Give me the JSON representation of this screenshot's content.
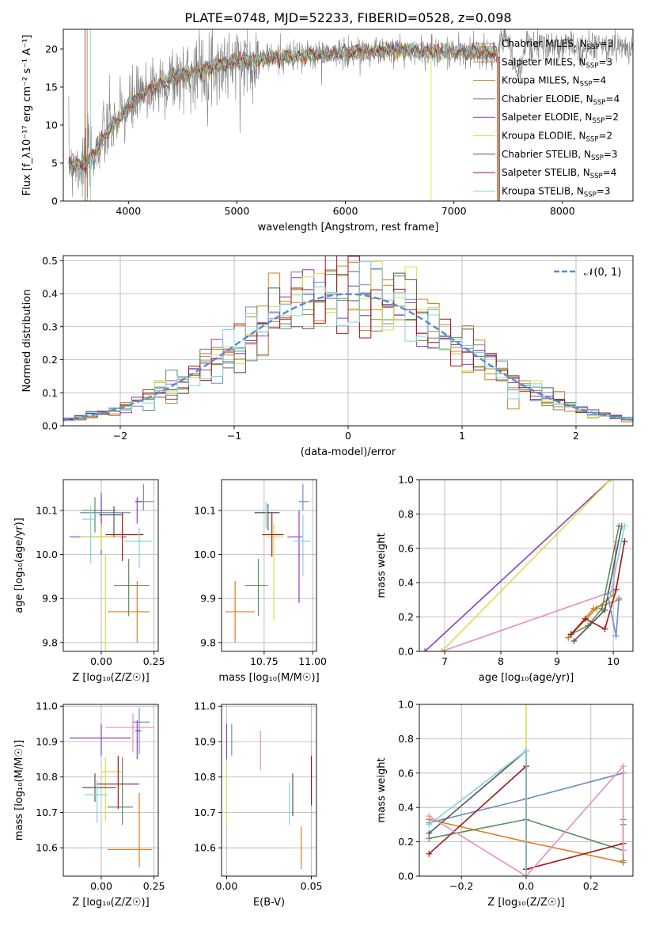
{
  "title": "PLATE=0748, MJD=52233, FIBERID=0528, z=0.098",
  "series_colors": [
    "#6c8ebf",
    "#e07b1f",
    "#b5892a",
    "#5a8f5a",
    "#8e3fb5",
    "#d8e04a",
    "#555555",
    "#a01818",
    "#7fd3dc"
  ],
  "chart_data": [
    {
      "panel": "spectrum",
      "type": "line",
      "xlabel": "wavelength [Angstrom, rest frame]",
      "ylabel": "Flux [f_λ10⁻¹⁷ erg cm⁻² s⁻¹ A⁻¹]",
      "xlim": [
        3400,
        8650
      ],
      "ylim": [
        0,
        22.6
      ],
      "xticks": [
        4000,
        5000,
        6000,
        7000,
        8000
      ],
      "yticks": [
        0,
        5,
        10,
        15,
        20
      ],
      "grid": false,
      "legend_position": "top-right",
      "legend": [
        "Chabrier MILES, N_SSP=3",
        "Salpeter MILES, N_SSP=3",
        "Kroupa MILES, N_SSP=4",
        "Chabrier ELODIE, N_SSP=4",
        "Salpeter ELODIE, N_SSP=2",
        "Kroupa ELODIE, N_SSP=2",
        "Chabrier STELIB, N_SSP=3",
        "Salpeter STELIB, N_SSP=4",
        "Kroupa STELIB, N_SSP=3"
      ],
      "continuum": {
        "x": [
          3450,
          3600,
          3800,
          3950,
          4050,
          4200,
          4400,
          4600,
          4800,
          5000,
          5200,
          5400,
          5600,
          5800,
          6000,
          6200,
          6400,
          6600,
          6800,
          7000,
          7200,
          7400
        ],
        "y": [
          5.2,
          4.5,
          9.0,
          11.5,
          13.0,
          14.8,
          16.0,
          17.0,
          17.8,
          18.3,
          18.6,
          18.9,
          19.1,
          19.3,
          19.5,
          19.7,
          19.8,
          19.8,
          19.7,
          19.6,
          19.6,
          19.5
        ]
      },
      "data_extends_to": 8650,
      "vertical_spikes": [
        3600,
        3620,
        3650,
        6790,
        7400,
        7410,
        7420
      ]
    },
    {
      "panel": "residual-histogram",
      "type": "bar",
      "xlabel": "(data-model)/error",
      "ylabel": "Normed distribution",
      "xlim": [
        -2.5,
        2.5
      ],
      "ylim": [
        0,
        0.515
      ],
      "xticks": [
        -2,
        -1,
        0,
        1,
        2
      ],
      "yticks": [
        0.0,
        0.1,
        0.2,
        0.3,
        0.4,
        0.5
      ],
      "grid": true,
      "legend_position": "top-right",
      "legend": [
        "𝒩(0, 1)"
      ],
      "bin_width": 0.1
    },
    {
      "panel": "age-vs-Z",
      "type": "scatter",
      "xlabel": "Z [log₁₀(Z/Z☉)]",
      "ylabel": "age  [log₁₀(age/yr)]",
      "xlim": [
        -0.18,
        0.27
      ],
      "ylim": [
        9.78,
        10.17
      ],
      "xticks": [
        0.0,
        0.25
      ],
      "yticks": [
        9.8,
        9.9,
        10.0,
        10.1
      ],
      "grid": true,
      "points": [
        {
          "x": 0.0,
          "y": 10.095,
          "xerr": [
            0.1,
            0.14
          ],
          "yerr": [
            0.04,
            0.03
          ],
          "c": 0
        },
        {
          "x": 0.17,
          "y": 9.87,
          "xerr": [
            0.14,
            0.06
          ],
          "yerr": [
            0.07,
            0.07
          ],
          "c": 1
        },
        {
          "x": -0.03,
          "y": 10.1,
          "xerr": [
            0.06,
            0.1
          ],
          "yerr": [
            0.05,
            0.03
          ],
          "c": 3
        },
        {
          "x": 0.13,
          "y": 9.93,
          "xerr": [
            0.07,
            0.1
          ],
          "yerr": [
            0.07,
            0.06
          ],
          "c": 3
        },
        {
          "x": 0.0,
          "y": 10.04,
          "xerr": [
            0.15,
            0.12
          ],
          "yerr": [
            0.04,
            0.1
          ],
          "c": 4
        },
        {
          "x": 0.0,
          "y": 10.04,
          "xerr": [
            0.1,
            0.1
          ],
          "yerr": [
            0.03,
            0.03
          ],
          "c": 5
        },
        {
          "x": 0.02,
          "y": 10.0,
          "xerr": [
            0.0,
            0.0
          ],
          "yerr": [
            0.22,
            0.0
          ],
          "c": 5
        },
        {
          "x": 0.06,
          "y": 10.09,
          "xerr": [
            0.07,
            0.04
          ],
          "yerr": [
            0.05,
            0.02
          ],
          "c": 6
        },
        {
          "x": 0.1,
          "y": 10.045,
          "xerr": [
            0.08,
            0.1
          ],
          "yerr": [
            0.06,
            0.05
          ],
          "c": 7
        },
        {
          "x": 0.18,
          "y": 10.03,
          "xerr": [
            0.07,
            0.06
          ],
          "yerr": [
            0.06,
            0.03
          ],
          "c": 8
        },
        {
          "x": 0.2,
          "y": 10.12,
          "xerr": [
            0.03,
            0.05
          ],
          "yerr": [
            0.02,
            0.04
          ],
          "c": 0
        },
        {
          "x": -0.05,
          "y": 10.08,
          "xerr": [
            0.04,
            0.02
          ],
          "yerr": [
            0.1,
            0.03
          ],
          "c": 8
        },
        {
          "x": 0.17,
          "y": 10.12,
          "xerr": [
            0.01,
            0.02
          ],
          "yerr": [
            0.05,
            0.01
          ],
          "c": 4
        }
      ]
    },
    {
      "panel": "age-vs-mass",
      "type": "scatter",
      "xlabel": "mass [log₁₀(M/M☉)]",
      "ylabel": "",
      "xlim": [
        10.53,
        11.02
      ],
      "ylim": [
        9.78,
        10.17
      ],
      "xticks": [
        10.75,
        11.0
      ],
      "yticks": [
        9.8,
        9.9,
        10.0,
        10.1
      ],
      "grid": true,
      "points": [
        {
          "x": 10.6,
          "y": 9.87,
          "xerr": [
            0.05,
            0.1
          ],
          "yerr": [
            0.07,
            0.07
          ],
          "c": 1
        },
        {
          "x": 10.72,
          "y": 9.93,
          "xerr": [
            0.07,
            0.05
          ],
          "yerr": [
            0.07,
            0.06
          ],
          "c": 3
        },
        {
          "x": 10.77,
          "y": 10.095,
          "xerr": [
            0.07,
            0.06
          ],
          "yerr": [
            0.04,
            0.02
          ],
          "c": 6
        },
        {
          "x": 10.8,
          "y": 10.04,
          "xerr": [
            0.04,
            0.05
          ],
          "yerr": [
            0.19,
            0.03
          ],
          "c": 5
        },
        {
          "x": 10.79,
          "y": 10.045,
          "xerr": [
            0.05,
            0.06
          ],
          "yerr": [
            0.05,
            0.05
          ],
          "c": 7
        },
        {
          "x": 10.93,
          "y": 10.04,
          "xerr": [
            0.06,
            0.02
          ],
          "yerr": [
            0.15,
            0.06
          ],
          "c": 4
        },
        {
          "x": 10.95,
          "y": 10.03,
          "xerr": [
            0.05,
            0.04
          ],
          "yerr": [
            0.08,
            0.06
          ],
          "c": 8
        },
        {
          "x": 10.95,
          "y": 10.12,
          "xerr": [
            0.02,
            0.03
          ],
          "yerr": [
            0.02,
            0.04
          ],
          "c": 0
        },
        {
          "x": 10.76,
          "y": 10.1,
          "xerr": [
            0.05,
            0.04
          ],
          "yerr": [
            0.04,
            0.02
          ],
          "c": 8
        }
      ]
    },
    {
      "panel": "weight-vs-age",
      "type": "line",
      "xlabel": "age  [log₁₀(age/yr)]",
      "ylabel": "mass weight",
      "xlim": [
        6.55,
        10.35
      ],
      "ylim": [
        0.0,
        1.0
      ],
      "xticks": [
        7,
        8,
        9,
        10
      ],
      "yticks": [
        0.0,
        0.2,
        0.4,
        0.6,
        0.8,
        1.0
      ],
      "grid": true,
      "series": [
        {
          "c": 4,
          "x": [
            6.65,
            9.95
          ],
          "y": [
            0.0,
            1.0
          ]
        },
        {
          "c": 5,
          "x": [
            6.95,
            9.95
          ],
          "y": [
            0.0,
            1.0
          ]
        },
        {
          "c": "#e58fbf",
          "x": [
            6.95,
            10.0,
            10.05
          ],
          "y": [
            0.0,
            0.35,
            0.64
          ]
        },
        {
          "c": 1,
          "x": [
            9.2,
            9.65,
            10.1
          ],
          "y": [
            0.08,
            0.25,
            0.3
          ]
        },
        {
          "c": 2,
          "x": [
            9.2,
            9.7,
            10.0
          ],
          "y": [
            0.08,
            0.25,
            0.33
          ]
        },
        {
          "c": 3,
          "x": [
            9.25,
            9.55,
            9.8,
            10.1
          ],
          "y": [
            0.1,
            0.15,
            0.25,
            0.73
          ]
        },
        {
          "c": 6,
          "x": [
            9.3,
            9.85,
            10.15
          ],
          "y": [
            0.06,
            0.24,
            0.73
          ]
        },
        {
          "c": 7,
          "x": [
            9.25,
            9.5,
            9.85,
            10.05,
            10.2
          ],
          "y": [
            0.1,
            0.19,
            0.13,
            0.36,
            0.64
          ]
        },
        {
          "c": 0,
          "x": [
            9.9,
            10.05,
            10.1
          ],
          "y": [
            0.33,
            0.09,
            0.31
          ]
        },
        {
          "c": 8,
          "x": [
            9.95,
            10.2
          ],
          "y": [
            0.33,
            0.73
          ]
        }
      ]
    },
    {
      "panel": "mass-vs-Z",
      "type": "scatter",
      "xlabel": "Z [log₁₀(Z/Z☉)]",
      "ylabel": "mass [log₁₀(M/M☉)]",
      "xlim": [
        -0.18,
        0.27
      ],
      "ylim": [
        10.52,
        11.005
      ],
      "xticks": [
        0.0,
        0.25
      ],
      "yticks": [
        10.6,
        10.7,
        10.8,
        10.9,
        11.0
      ],
      "grid": true,
      "points": [
        {
          "x": 0.0,
          "y": 10.91,
          "xerr": [
            0.15,
            0.14
          ],
          "yerr": [
            0.05,
            0.04
          ],
          "c": 4
        },
        {
          "x": 0.18,
          "y": 10.595,
          "xerr": [
            0.15,
            0.06
          ],
          "yerr": [
            0.05,
            0.16
          ],
          "c": 1
        },
        {
          "x": 0.18,
          "y": 10.955,
          "xerr": [
            0.03,
            0.05
          ],
          "yerr": [
            0.09,
            0.04
          ],
          "c": 0
        },
        {
          "x": 0.15,
          "y": 10.94,
          "xerr": [
            0.13,
            0.1
          ],
          "yerr": [
            0.07,
            0.04
          ],
          "c": "#e58fbf"
        },
        {
          "x": 0.02,
          "y": 10.815,
          "xerr": [
            0.02,
            0.08
          ],
          "yerr": [
            0.14,
            0.04
          ],
          "c": 5
        },
        {
          "x": -0.03,
          "y": 10.77,
          "xerr": [
            0.06,
            0.1
          ],
          "yerr": [
            0.04,
            0.04
          ],
          "c": 6
        },
        {
          "x": -0.02,
          "y": 10.75,
          "xerr": [
            0.06,
            0.05
          ],
          "yerr": [
            0.08,
            0.04
          ],
          "c": 8
        },
        {
          "x": 0.1,
          "y": 10.715,
          "xerr": [
            0.07,
            0.05
          ],
          "yerr": [
            0.05,
            0.14
          ],
          "c": 3
        },
        {
          "x": 0.08,
          "y": 10.78,
          "xerr": [
            0.1,
            0.1
          ],
          "yerr": [
            0.07,
            0.08
          ],
          "c": 7
        },
        {
          "x": 0.17,
          "y": 10.93,
          "xerr": [
            0.01,
            0.02
          ],
          "yerr": [
            0.08,
            0.03
          ],
          "c": 4
        }
      ]
    },
    {
      "panel": "mass-vs-ebv",
      "type": "scatter",
      "xlabel": "E(B-V)",
      "ylabel": "",
      "xlim": [
        -0.003,
        0.053
      ],
      "ylim": [
        10.52,
        11.005
      ],
      "xticks": [
        0.0,
        0.05
      ],
      "yticks": [
        10.6,
        10.7,
        10.8,
        10.9,
        11.0
      ],
      "grid": true,
      "points": [
        {
          "x": 0.0,
          "y": 10.9,
          "xerr": [
            0,
            0
          ],
          "yerr": [
            0.05,
            0.05
          ],
          "c": 4
        },
        {
          "x": 0.0,
          "y": 10.76,
          "xerr": [
            0,
            0
          ],
          "yerr": [
            0.1,
            0.08
          ],
          "c": 5
        },
        {
          "x": 0.003,
          "y": 10.9,
          "xerr": [
            0,
            0
          ],
          "yerr": [
            0.04,
            0.05
          ],
          "c": 0
        },
        {
          "x": 0.02,
          "y": 10.875,
          "xerr": [
            0,
            0
          ],
          "yerr": [
            0.055,
            0.055
          ],
          "c": "#e58fbf"
        },
        {
          "x": 0.037,
          "y": 10.725,
          "xerr": [
            0,
            0
          ],
          "yerr": [
            0.06,
            0.06
          ],
          "c": 8
        },
        {
          "x": 0.039,
          "y": 10.75,
          "xerr": [
            0,
            0
          ],
          "yerr": [
            0.06,
            0.06
          ],
          "c": 6
        },
        {
          "x": 0.044,
          "y": 10.6,
          "xerr": [
            0,
            0
          ],
          "yerr": [
            0.06,
            0.06
          ],
          "c": 1
        },
        {
          "x": 0.05,
          "y": 10.79,
          "xerr": [
            0,
            0
          ],
          "yerr": [
            0.07,
            0.07
          ],
          "c": 7
        }
      ]
    },
    {
      "panel": "weight-vs-Z",
      "type": "line",
      "xlabel": "Z [log₁₀(Z/Z☉)]",
      "ylabel": "mass weight",
      "xlim": [
        -0.33,
        0.33
      ],
      "ylim": [
        0.0,
        1.0
      ],
      "xticks": [
        -0.2,
        0.0,
        0.2
      ],
      "yticks": [
        0.0,
        0.2,
        0.4,
        0.6,
        0.8,
        1.0
      ],
      "grid": true,
      "series": [
        {
          "c": 0,
          "x": [
            -0.3,
            0.0,
            0.3,
            0.3
          ],
          "y": [
            0.31,
            0.45,
            0.6,
            0.09
          ]
        },
        {
          "c": 1,
          "x": [
            -0.3,
            0.0,
            0.3
          ],
          "y": [
            0.33,
            0.2,
            0.08
          ]
        },
        {
          "c": 2,
          "x": [
            0.3,
            0.3
          ],
          "y": [
            0.33,
            0.08
          ]
        },
        {
          "c": 3,
          "x": [
            -0.3,
            0.0,
            0.3,
            0.3
          ],
          "y": [
            0.22,
            0.33,
            0.15,
            0.3
          ]
        },
        {
          "c": 5,
          "x": [
            0.0,
            0.0
          ],
          "y": [
            1.0,
            0.0
          ]
        },
        {
          "c": 6,
          "x": [
            -0.3,
            0.0,
            0.0
          ],
          "y": [
            0.25,
            0.73,
            0.04
          ]
        },
        {
          "c": 7,
          "x": [
            -0.3,
            0.0,
            0.0,
            0.3
          ],
          "y": [
            0.13,
            0.64,
            0.04,
            0.19
          ]
        },
        {
          "c": "#e58fbf",
          "x": [
            -0.3,
            0.0,
            0.3,
            0.3
          ],
          "y": [
            0.35,
            0.0,
            0.64,
            0.15
          ]
        },
        {
          "c": 8,
          "x": [
            -0.3,
            0.0,
            0.0
          ],
          "y": [
            0.3,
            0.73,
            0.0
          ]
        }
      ]
    }
  ]
}
